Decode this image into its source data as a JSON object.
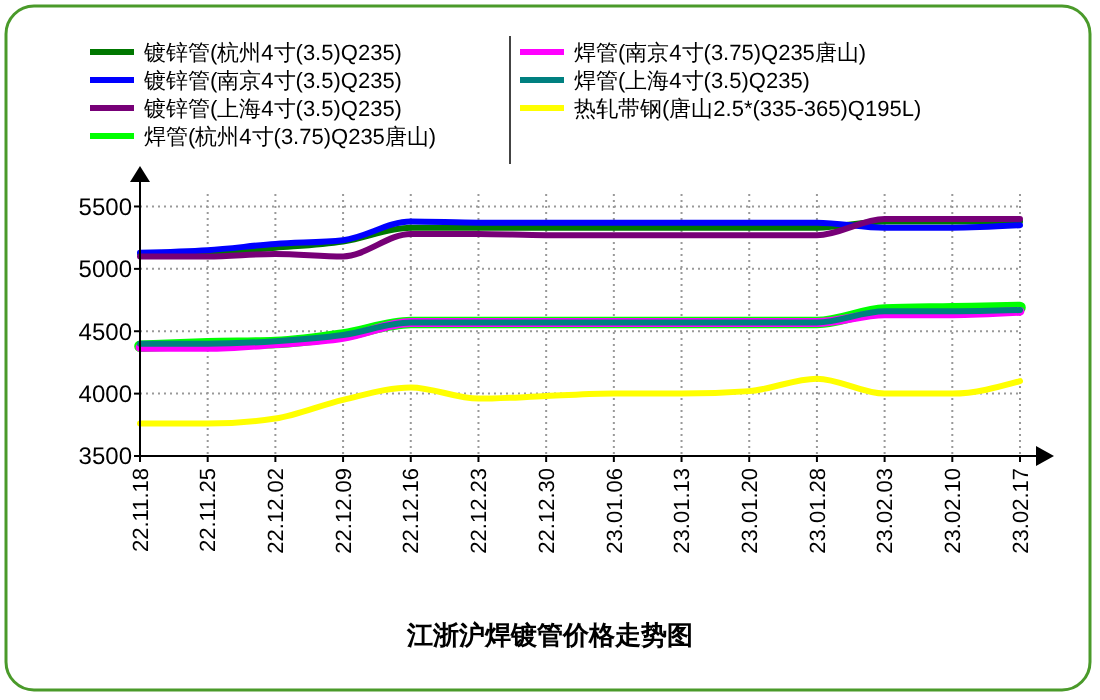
{
  "chart_data": {
    "type": "line",
    "title": "江浙沪焊镀管价格走势图",
    "categories": [
      "22.11.18",
      "22.11.25",
      "22.12.02",
      "22.12.09",
      "22.12.16",
      "22.12.23",
      "22.12.30",
      "23.01.06",
      "23.01.13",
      "23.01.20",
      "23.01.28",
      "23.02.03",
      "23.02.10",
      "23.02.17"
    ],
    "series": [
      {
        "name": "镀锌管(杭州4寸(3.5)Q235)",
        "color": "#007700",
        "values": [
          5120,
          5130,
          5170,
          5220,
          5330,
          5330,
          5330,
          5330,
          5330,
          5330,
          5330,
          5380,
          5380,
          5380
        ]
      },
      {
        "name": "镀锌管(南京4寸(3.5)Q235)",
        "color": "#0000ff",
        "values": [
          5130,
          5150,
          5200,
          5230,
          5380,
          5370,
          5370,
          5370,
          5370,
          5370,
          5370,
          5330,
          5330,
          5350
        ]
      },
      {
        "name": "镀锌管(上海4寸(3.5)Q235)",
        "color": "#770077",
        "values": [
          5100,
          5100,
          5120,
          5100,
          5280,
          5280,
          5270,
          5270,
          5270,
          5270,
          5270,
          5400,
          5400,
          5400
        ]
      },
      {
        "name": "焊管(杭州4寸(3.75)Q235唐山)",
        "color": "#00ff00",
        "values": [
          4380,
          4400,
          4410,
          4470,
          4570,
          4570,
          4570,
          4570,
          4570,
          4570,
          4570,
          4670,
          4680,
          4690
        ]
      },
      {
        "name": "焊管(南京4寸(3.75)Q235唐山)",
        "color": "#ff00ff",
        "values": [
          4370,
          4370,
          4400,
          4450,
          4570,
          4570,
          4570,
          4570,
          4570,
          4570,
          4570,
          4640,
          4640,
          4660
        ]
      },
      {
        "name": "焊管(上海4寸(3.5)Q235)",
        "color": "#008080",
        "values": [
          4400,
          4400,
          4420,
          4470,
          4570,
          4570,
          4570,
          4570,
          4570,
          4570,
          4570,
          4660,
          4660,
          4670
        ]
      },
      {
        "name": "热轧带钢(唐山2.5*(335-365)Q195L)",
        "color": "#ffff00",
        "values": [
          3760,
          3760,
          3800,
          3950,
          4050,
          3960,
          3980,
          4000,
          4000,
          4020,
          4120,
          4000,
          4000,
          4100
        ]
      }
    ],
    "ylim": [
      3500,
      5600
    ],
    "yticks": [
      3500,
      4000,
      4500,
      5000,
      5500
    ],
    "grid": true,
    "legend": "top",
    "marker": "none",
    "line_style": "solid"
  }
}
